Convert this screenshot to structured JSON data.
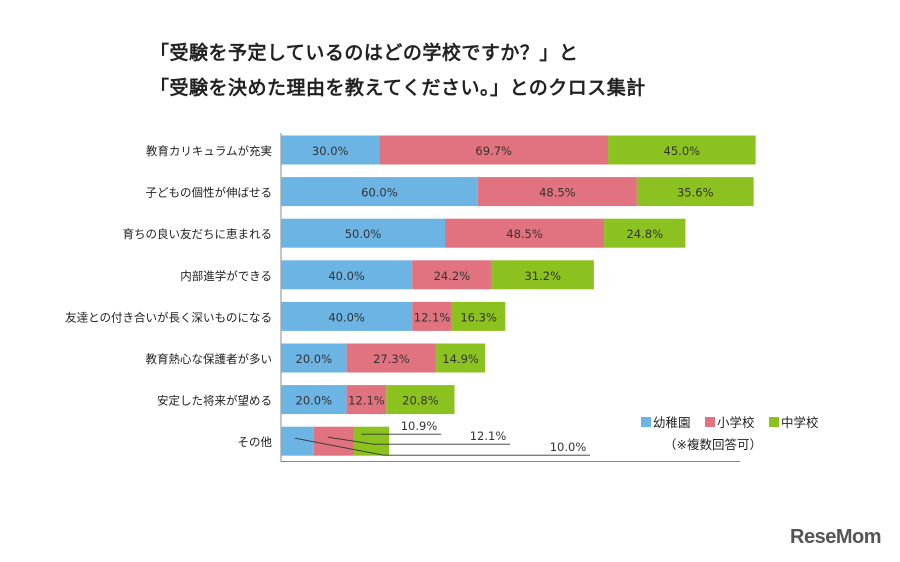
{
  "chart_data": {
    "type": "bar",
    "stacked": true,
    "orientation": "horizontal",
    "title": [
      "「受験を予定しているのはどの学校ですか？」と",
      "「受験を決めた理由を教えてください。」とのクロス集計"
    ],
    "categories": [
      "教育カリキュラムが充実",
      "子どもの個性が伸ばせる",
      "育ちの良い友だちに恵まれる",
      "内部進学ができる",
      "友達との付き合いが長く深いものになる",
      "教育熱心な保護者が多い",
      "安定した将来が望める",
      "その他"
    ],
    "series": [
      {
        "name": "幼稚園",
        "color": "#6cb4e4",
        "values": [
          30.0,
          60.0,
          50.0,
          40.0,
          40.0,
          20.0,
          20.0,
          10.0
        ]
      },
      {
        "name": "小学校",
        "color": "#e0737f",
        "values": [
          69.7,
          48.5,
          48.5,
          24.2,
          12.1,
          27.3,
          12.1,
          12.1
        ]
      },
      {
        "name": "中学校",
        "color": "#8cc21f",
        "values": [
          45.0,
          35.6,
          24.8,
          31.2,
          16.3,
          14.9,
          20.8,
          10.9
        ]
      }
    ],
    "unit": "%",
    "legend_position": "bottom-right",
    "note": "（※複数回答可）",
    "grid": false
  },
  "logo": "ReseMom"
}
